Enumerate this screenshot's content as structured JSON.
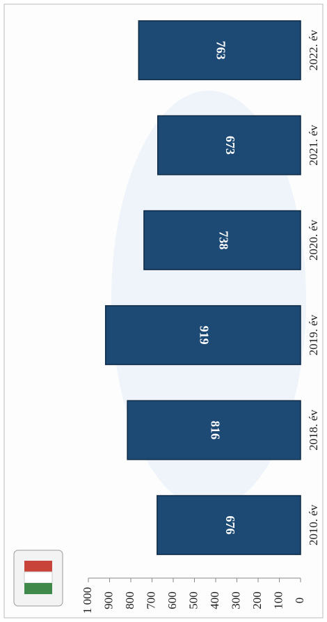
{
  "chart_data": {
    "type": "bar",
    "orientation": "horizontal",
    "categories": [
      "2010. év",
      "2018. év",
      "2019. év",
      "2020. év",
      "2021. év",
      "2022. év"
    ],
    "values": [
      676,
      816,
      919,
      738,
      673,
      763
    ],
    "color": "#1d4a74",
    "ylim": [
      0,
      1000
    ],
    "yticks": [
      0,
      100,
      200,
      300,
      400,
      500,
      600,
      700,
      800,
      900,
      {
        "value": 1000,
        "label": "1 000"
      }
    ]
  }
}
